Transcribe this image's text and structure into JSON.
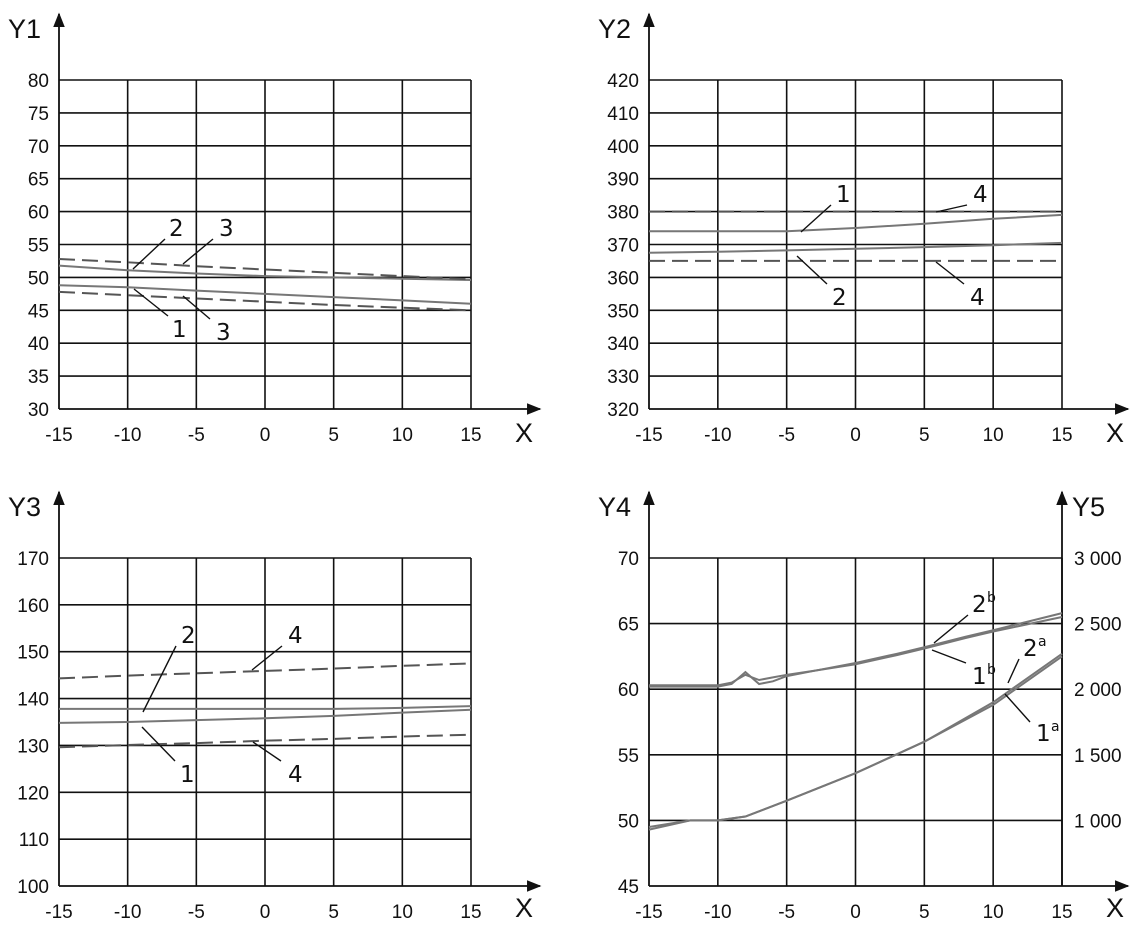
{
  "chart_data": [
    {
      "type": "line",
      "ylabel": "Y1",
      "xlabel": "X",
      "xlim": [
        -15,
        15
      ],
      "ylim": [
        30,
        80
      ],
      "x_ticks": [
        "-15",
        "-10",
        "-5",
        "0",
        "5",
        "10",
        "15"
      ],
      "y_ticks": [
        "30",
        "35",
        "40",
        "45",
        "50",
        "55",
        "60",
        "65",
        "70",
        "75",
        "80"
      ],
      "grid": true,
      "series": [
        {
          "id": "s1",
          "style": "solid",
          "x": [
            -15,
            -10,
            -5,
            0,
            5,
            10,
            15
          ],
          "y": [
            48.8,
            48.5,
            48.0,
            47.5,
            47.0,
            46.5,
            46.0
          ]
        },
        {
          "id": "s2",
          "style": "solid",
          "x": [
            -15,
            -10,
            -5,
            0,
            5,
            10,
            15
          ],
          "y": [
            51.8,
            51.1,
            50.6,
            50.2,
            50.0,
            49.8,
            49.6
          ]
        },
        {
          "id": "s3-upper",
          "style": "dashed",
          "x": [
            -15,
            -10,
            -5,
            0,
            5,
            10,
            15
          ],
          "y": [
            52.8,
            52.3,
            51.7,
            51.2,
            50.7,
            50.2,
            49.7
          ]
        },
        {
          "id": "s3-lower",
          "style": "dashed",
          "x": [
            -15,
            -10,
            -5,
            0,
            5,
            10,
            15
          ],
          "y": [
            47.8,
            47.3,
            46.8,
            46.3,
            45.8,
            45.4,
            45.0
          ]
        }
      ],
      "annotations": [
        "1",
        "2",
        "3",
        "3"
      ]
    },
    {
      "type": "line",
      "ylabel": "Y2",
      "xlabel": "X",
      "xlim": [
        -15,
        15
      ],
      "ylim": [
        320,
        420
      ],
      "x_ticks": [
        "-15",
        "-10",
        "-5",
        "0",
        "5",
        "10",
        "15"
      ],
      "y_ticks": [
        "320",
        "330",
        "340",
        "350",
        "360",
        "370",
        "380",
        "390",
        "400",
        "410",
        "420"
      ],
      "grid": true,
      "series": [
        {
          "id": "s1",
          "style": "solid",
          "x": [
            -15,
            -10,
            -5,
            0,
            5,
            10,
            15
          ],
          "y": [
            374.0,
            374.0,
            374.0,
            375.0,
            376.3,
            377.8,
            379.0
          ]
        },
        {
          "id": "s2",
          "style": "solid",
          "x": [
            -15,
            -10,
            -5,
            0,
            5,
            10,
            15
          ],
          "y": [
            367.5,
            367.8,
            368.2,
            368.7,
            369.2,
            369.8,
            370.5
          ]
        },
        {
          "id": "s4-upper",
          "style": "dashed",
          "x": [
            -15,
            15
          ],
          "y": [
            380.0,
            380.0
          ]
        },
        {
          "id": "s4-lower",
          "style": "dashed",
          "x": [
            -15,
            15
          ],
          "y": [
            365.0,
            365.0
          ]
        }
      ],
      "annotations": [
        "1",
        "2",
        "4",
        "4"
      ]
    },
    {
      "type": "line",
      "ylabel": "Y3",
      "xlabel": "X",
      "xlim": [
        -15,
        15
      ],
      "ylim": [
        100,
        170
      ],
      "x_ticks": [
        "-15",
        "-10",
        "-5",
        "0",
        "5",
        "10",
        "15"
      ],
      "y_ticks": [
        "100",
        "110",
        "120",
        "130",
        "140",
        "150",
        "160",
        "170"
      ],
      "grid": true,
      "series": [
        {
          "id": "s1",
          "style": "solid",
          "x": [
            -15,
            -10,
            -5,
            0,
            5,
            10,
            15
          ],
          "y": [
            134.8,
            135.0,
            135.4,
            135.8,
            136.3,
            137.0,
            137.6
          ]
        },
        {
          "id": "s2",
          "style": "solid",
          "x": [
            -15,
            -10,
            -5,
            0,
            5,
            10,
            15
          ],
          "y": [
            137.8,
            137.8,
            137.8,
            137.8,
            137.8,
            138.0,
            138.4
          ]
        },
        {
          "id": "s4-upper",
          "style": "dashed",
          "x": [
            -15,
            -10,
            -5,
            0,
            5,
            10,
            15
          ],
          "y": [
            144.3,
            144.9,
            145.4,
            145.9,
            146.4,
            147.0,
            147.5
          ]
        },
        {
          "id": "s4-lower",
          "style": "dashed",
          "x": [
            -15,
            -10,
            -5,
            0,
            5,
            10,
            15
          ],
          "y": [
            129.6,
            130.1,
            130.5,
            131.0,
            131.4,
            131.9,
            132.3
          ]
        }
      ],
      "annotations": [
        "1",
        "2",
        "4",
        "4"
      ]
    },
    {
      "type": "line",
      "ylabel": "Y4",
      "y2label": "Y5",
      "xlabel": "X",
      "xlim": [
        -15,
        15
      ],
      "ylim": [
        45,
        70
      ],
      "y2lim": [
        500,
        3000
      ],
      "x_ticks": [
        "-15",
        "-10",
        "-5",
        "0",
        "5",
        "10",
        "15"
      ],
      "y_ticks": [
        "45",
        "50",
        "55",
        "60",
        "65",
        "70"
      ],
      "y2_ticks": [
        "1 000",
        "1 500",
        "2 000",
        "2 500",
        "3 000"
      ],
      "grid": true,
      "series": [
        {
          "id": "s1b",
          "style": "solid",
          "axis": "left",
          "x": [
            -15,
            -10,
            -9,
            -8,
            -7,
            -6,
            -5,
            -3,
            0,
            3,
            5,
            8,
            10,
            15
          ],
          "y": [
            60.3,
            60.3,
            60.5,
            61.1,
            60.7,
            60.9,
            61.1,
            61.4,
            61.9,
            62.6,
            63.1,
            63.9,
            64.4,
            65.5
          ]
        },
        {
          "id": "s2b",
          "style": "solid",
          "axis": "left",
          "x": [
            -15,
            -10,
            -9,
            -8,
            -7,
            -6,
            -5,
            -3,
            0,
            3,
            5,
            8,
            10,
            15
          ],
          "y": [
            60.2,
            60.2,
            60.4,
            61.3,
            60.4,
            60.6,
            61.0,
            61.4,
            62.0,
            62.7,
            63.2,
            64.0,
            64.5,
            65.8
          ]
        },
        {
          "id": "s1a",
          "style": "solid",
          "axis": "right",
          "x": [
            -15,
            -12,
            -10,
            -8,
            -5,
            0,
            5,
            10,
            15
          ],
          "y": [
            950,
            1000,
            1000,
            1030,
            1150,
            1360,
            1600,
            1880,
            2250
          ]
        },
        {
          "id": "s2a",
          "style": "solid",
          "axis": "right",
          "x": [
            -15,
            -12,
            -10,
            -8,
            -5,
            0,
            5,
            10,
            15
          ],
          "y": [
            930,
            1000,
            1000,
            1030,
            1150,
            1360,
            1600,
            1900,
            2270
          ]
        }
      ],
      "annotations": [
        "1",
        "b",
        "2",
        "b",
        "1",
        "a",
        "2",
        "a"
      ]
    }
  ]
}
